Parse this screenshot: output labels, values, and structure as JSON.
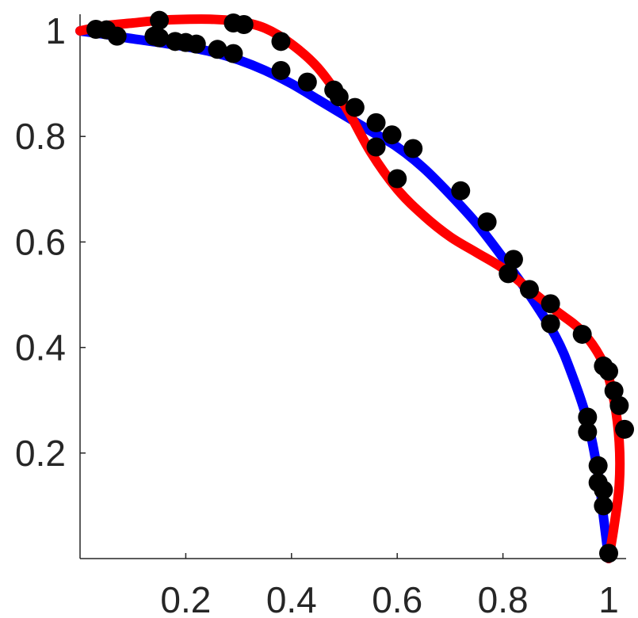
{
  "chart_data": {
    "type": "line",
    "title": "",
    "xlabel": "",
    "ylabel": "",
    "xlim": [
      0,
      1.03
    ],
    "ylim": [
      0,
      1.02
    ],
    "grid": false,
    "x_ticks": [
      0.2,
      0.4,
      0.6,
      0.8,
      1
    ],
    "x_tick_labels": [
      "0.2",
      "0.4",
      "0.6",
      "0.8",
      "1"
    ],
    "y_ticks": [
      0.2,
      0.4,
      0.6,
      0.8,
      1
    ],
    "y_tick_labels": [
      "0.2",
      "0.4",
      "0.6",
      "0.8",
      "1"
    ],
    "series": [
      {
        "color": "#0000ff",
        "x": [
          0,
          0.05,
          0.1,
          0.15,
          0.2,
          0.25,
          0.3,
          0.35,
          0.4,
          0.45,
          0.5,
          0.55,
          0.6,
          0.65,
          0.7,
          0.75,
          0.8,
          0.85,
          0.9,
          0.93,
          0.96,
          0.98,
          0.99,
          1.0
        ],
        "y": [
          1.0,
          0.993,
          0.985,
          0.978,
          0.97,
          0.96,
          0.945,
          0.925,
          0.9,
          0.87,
          0.84,
          0.81,
          0.78,
          0.74,
          0.69,
          0.635,
          0.57,
          0.5,
          0.42,
          0.35,
          0.26,
          0.16,
          0.08,
          0.0
        ]
      },
      {
        "color": "#ff0000",
        "x": [
          0,
          0.05,
          0.1,
          0.15,
          0.2,
          0.25,
          0.3,
          0.35,
          0.4,
          0.45,
          0.5,
          0.55,
          0.6,
          0.65,
          0.7,
          0.75,
          0.8,
          0.85,
          0.9,
          0.95,
          0.99,
          1.01,
          1.02,
          1.02,
          1.01,
          1.0
        ],
        "y": [
          1.0,
          1.01,
          1.015,
          1.02,
          1.022,
          1.022,
          1.018,
          1.005,
          0.975,
          0.93,
          0.86,
          0.77,
          0.7,
          0.65,
          0.61,
          0.58,
          0.55,
          0.51,
          0.47,
          0.43,
          0.37,
          0.3,
          0.22,
          0.14,
          0.06,
          0.0
        ]
      }
    ],
    "points": [
      [
        0.03,
        1.003
      ],
      [
        0.05,
        1.002
      ],
      [
        0.07,
        0.99
      ],
      [
        0.14,
        0.99
      ],
      [
        0.15,
        0.987
      ],
      [
        0.18,
        0.98
      ],
      [
        0.2,
        0.978
      ],
      [
        0.22,
        0.975
      ],
      [
        0.26,
        0.965
      ],
      [
        0.29,
        0.957
      ],
      [
        0.38,
        0.925
      ],
      [
        0.43,
        0.903
      ],
      [
        0.48,
        0.888
      ],
      [
        0.49,
        0.875
      ],
      [
        0.52,
        0.855
      ],
      [
        0.56,
        0.826
      ],
      [
        0.59,
        0.803
      ],
      [
        0.63,
        0.777
      ],
      [
        0.72,
        0.697
      ],
      [
        0.77,
        0.638
      ],
      [
        0.81,
        0.54
      ],
      [
        0.82,
        0.567
      ],
      [
        0.85,
        0.51
      ],
      [
        0.89,
        0.483
      ],
      [
        0.89,
        0.445
      ],
      [
        0.95,
        0.425
      ],
      [
        0.96,
        0.268
      ],
      [
        0.96,
        0.24
      ],
      [
        0.98,
        0.176
      ],
      [
        0.98,
        0.144
      ],
      [
        0.99,
        0.13
      ],
      [
        0.99,
        0.1
      ],
      [
        1.0,
        0.01
      ],
      [
        0.15,
        1.02
      ],
      [
        0.29,
        1.015
      ],
      [
        0.31,
        1.012
      ],
      [
        0.38,
        0.98
      ],
      [
        0.56,
        0.78
      ],
      [
        0.6,
        0.72
      ],
      [
        0.99,
        0.365
      ],
      [
        1.0,
        0.355
      ],
      [
        1.01,
        0.318
      ],
      [
        1.02,
        0.29
      ],
      [
        1.03,
        0.245
      ]
    ]
  }
}
